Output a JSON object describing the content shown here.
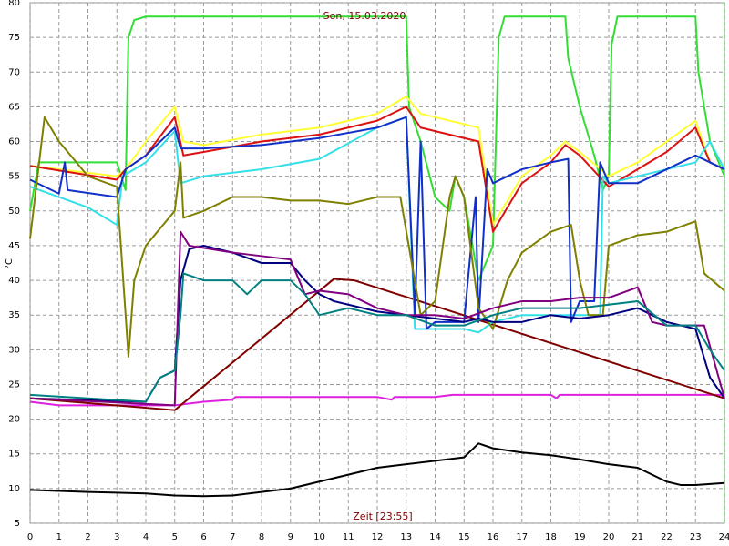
{
  "chart_data": {
    "type": "line",
    "title": "Son, 15.03.2020",
    "xlabel": "Zeit [23:55]",
    "ylabel": "°C",
    "xlim": [
      0,
      24
    ],
    "ylim": [
      5,
      80
    ],
    "xticks": [
      0,
      1,
      2,
      3,
      4,
      5,
      6,
      7,
      8,
      9,
      10,
      11,
      12,
      13,
      14,
      15,
      16,
      17,
      18,
      19,
      20,
      21,
      22,
      23,
      24
    ],
    "yticks": [
      5,
      10,
      15,
      20,
      25,
      30,
      35,
      40,
      45,
      50,
      55,
      60,
      65,
      70,
      75,
      80
    ],
    "grid": true,
    "series": [
      {
        "color": "#000000",
        "x": [
          0,
          2,
          4,
          5,
          6,
          7,
          8,
          9,
          10,
          11,
          12,
          13,
          14,
          15,
          15.5,
          16,
          17,
          18,
          19,
          20,
          21,
          21.5,
          22,
          22.5,
          23,
          24
        ],
        "values": [
          9.8,
          9.5,
          9.3,
          9.0,
          8.9,
          9.0,
          9.5,
          10.0,
          11.0,
          12.0,
          13.0,
          13.5,
          14.0,
          14.5,
          16.5,
          15.8,
          15.2,
          14.8,
          14.2,
          13.5,
          13.0,
          12.0,
          11.0,
          10.5,
          10.5,
          10.8
        ]
      },
      {
        "color": "#e020e0",
        "x": [
          0,
          1,
          3,
          5,
          6,
          7,
          7.1,
          10,
          12,
          12.5,
          12.6,
          14,
          14.6,
          18,
          18.2,
          18.3,
          24
        ],
        "values": [
          22.5,
          22.0,
          22.0,
          22.0,
          22.5,
          22.8,
          23.2,
          23.2,
          23.2,
          22.8,
          23.2,
          23.2,
          23.5,
          23.5,
          23.0,
          23.5,
          23.5
        ]
      },
      {
        "color": "#800000",
        "x": [
          0,
          5,
          10.5,
          11.2,
          24
        ],
        "values": [
          23,
          21.3,
          40.2,
          40.0,
          23
        ]
      },
      {
        "color": "#33dd33",
        "x": [
          0,
          0.3,
          1,
          3,
          3.3,
          3.4,
          3.6,
          4,
          13,
          13.1,
          13.5,
          14,
          14.5,
          14.7,
          15,
          15.5,
          16,
          16.2,
          16.4,
          18.5,
          18.6,
          19,
          19.5,
          19.8,
          20,
          20.1,
          20.3,
          23,
          23.1,
          23.5,
          24
        ],
        "values": [
          50,
          57,
          57,
          57,
          53,
          75,
          77.5,
          78,
          78,
          65,
          60,
          52,
          50,
          55,
          52,
          40,
          45,
          75,
          78,
          78,
          72,
          65,
          58,
          53,
          55,
          74,
          78,
          78,
          70,
          60,
          55
        ]
      },
      {
        "color": "#ffff33",
        "x": [
          0,
          1,
          2,
          3,
          3.3,
          4,
          5,
          5.3,
          6,
          8,
          10,
          12,
          13,
          13.5,
          15.5,
          16,
          17,
          18,
          18.5,
          19,
          20,
          21,
          22,
          23,
          23.5,
          24
        ],
        "values": [
          56.5,
          56,
          55.5,
          55,
          56,
          60,
          65,
          60,
          59.5,
          61,
          62,
          64,
          66.5,
          64,
          62,
          48,
          55,
          58,
          60,
          58.5,
          55,
          57,
          60,
          63,
          57,
          56
        ]
      },
      {
        "color": "#dd1111",
        "x": [
          0,
          3,
          3.3,
          4,
          5,
          5.3,
          6,
          8,
          10,
          12,
          13,
          13.5,
          15.5,
          16,
          17,
          18,
          18.5,
          19,
          20,
          21,
          22,
          23,
          23.5,
          24
        ],
        "values": [
          56.5,
          54.5,
          56,
          58,
          63.5,
          58,
          58.5,
          60,
          61,
          63,
          65,
          62,
          60,
          47,
          54,
          57,
          59.5,
          58,
          53.5,
          56,
          58.5,
          62,
          57,
          56
        ]
      },
      {
        "color": "#33e0e8",
        "x": [
          0,
          1,
          2,
          3,
          3.2,
          4,
          5,
          5.2,
          6,
          8,
          10,
          12,
          13,
          13.3,
          14,
          15,
          15.5,
          16,
          17,
          18,
          19,
          19.7,
          19.8,
          20,
          21,
          22,
          23,
          23.5,
          24
        ],
        "values": [
          53.5,
          52,
          50.5,
          48,
          55,
          57,
          61.5,
          54,
          55,
          56,
          57.5,
          62,
          63.5,
          33,
          33,
          33,
          32.5,
          34,
          35,
          35,
          35,
          35,
          55,
          54,
          55,
          56,
          57,
          60,
          56
        ]
      },
      {
        "color": "#1030c8",
        "x": [
          0,
          1,
          1.2,
          1.3,
          3,
          3.3,
          4,
          5,
          5.2,
          6,
          8,
          10,
          12,
          13,
          13.3,
          13.5,
          13.7,
          14,
          15,
          15.4,
          15.5,
          15.8,
          16,
          17,
          18,
          18.6,
          18.7,
          19,
          19.5,
          19.7,
          20,
          21,
          22,
          23,
          24
        ],
        "values": [
          54.5,
          52.5,
          57,
          53,
          52,
          56,
          58,
          62,
          59,
          59,
          59.5,
          60.5,
          62,
          63.5,
          35,
          60,
          33,
          34,
          34,
          52,
          34,
          56,
          54,
          56,
          57,
          57.5,
          34,
          37,
          37,
          57,
          54,
          54,
          56,
          58,
          56
        ]
      },
      {
        "color": "#808000",
        "x": [
          0,
          0.5,
          1,
          2,
          3,
          3.4,
          3.6,
          4,
          5,
          5.2,
          5.3,
          6,
          7,
          8,
          9,
          10,
          11,
          12,
          12.8,
          13.5,
          14,
          14.5,
          14.7,
          15,
          15.5,
          16,
          16.5,
          17,
          18,
          18.7,
          19,
          19.3,
          19.8,
          20,
          21,
          22,
          23,
          23.3,
          24
        ],
        "values": [
          46,
          63.5,
          60,
          55,
          53.5,
          29,
          40,
          45,
          50,
          57,
          49,
          50,
          52,
          52,
          51.5,
          51.5,
          51,
          52,
          52,
          35,
          37,
          52,
          55,
          52,
          36,
          33,
          40,
          44,
          47,
          48,
          40,
          35,
          35,
          45,
          46.5,
          47,
          48.5,
          41,
          38.5
        ]
      },
      {
        "color": "#000080",
        "x": [
          0,
          4,
          4.5,
          5,
          5.2,
          5.5,
          6,
          7,
          8,
          9,
          9.5,
          10,
          10.5,
          11,
          12,
          13,
          14,
          15,
          15.5,
          16,
          17,
          18,
          19,
          20,
          21,
          22,
          23,
          23.5,
          24
        ],
        "values": [
          23,
          22.5,
          26,
          27,
          40,
          44.5,
          45,
          44,
          42.5,
          42.5,
          40,
          38,
          37,
          36.5,
          35.5,
          35,
          34.5,
          34,
          34.5,
          34,
          34,
          35,
          34.5,
          35,
          36,
          34,
          33,
          26,
          23
        ]
      },
      {
        "color": "#800080",
        "x": [
          0,
          5,
          5.2,
          5.5,
          7,
          9,
          9.5,
          10,
          11,
          12,
          13,
          14,
          15,
          16,
          17,
          18,
          19,
          20,
          21,
          21.5,
          22,
          23,
          23.3,
          24
        ],
        "values": [
          23,
          22,
          47,
          45,
          44,
          43,
          38,
          38.5,
          38,
          36,
          35,
          35,
          34.5,
          36,
          37,
          37,
          37.5,
          37.5,
          39,
          34,
          33.5,
          33.5,
          33.5,
          23
        ]
      },
      {
        "color": "#008080",
        "x": [
          0,
          4,
          4.5,
          5,
          5.2,
          5.3,
          6,
          7,
          7.5,
          8,
          9,
          9.5,
          10,
          11,
          12,
          13,
          14,
          15,
          16,
          17,
          18,
          19,
          20,
          21,
          22,
          23,
          23.5,
          24
        ],
        "values": [
          23.5,
          22.5,
          26,
          27,
          35,
          41,
          40,
          40,
          38,
          40,
          40,
          38,
          35,
          36,
          35,
          35,
          33.5,
          33.5,
          35,
          36,
          36,
          36,
          36.5,
          37,
          33.5,
          33.5,
          30,
          27
        ]
      }
    ]
  }
}
